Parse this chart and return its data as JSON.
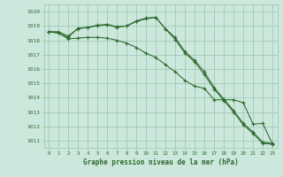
{
  "xlabel": "Graphe pression niveau de la mer (hPa)",
  "x": [
    0,
    1,
    2,
    3,
    4,
    5,
    6,
    7,
    8,
    9,
    10,
    11,
    12,
    13,
    14,
    15,
    16,
    17,
    18,
    19,
    20,
    21,
    22,
    23
  ],
  "line1": [
    1018.6,
    1018.6,
    1018.3,
    1018.8,
    1018.9,
    1019.0,
    1019.1,
    1018.9,
    1019.0,
    1019.35,
    1019.55,
    1019.6,
    1018.8,
    1018.2,
    1017.2,
    1016.6,
    1015.8,
    1014.7,
    1013.9,
    1013.1,
    1012.2,
    1011.6,
    1010.9,
    1010.8
  ],
  "line2": [
    1018.6,
    1018.5,
    1018.2,
    1018.85,
    1018.9,
    1019.05,
    1019.1,
    1018.95,
    1019.0,
    1019.3,
    1019.5,
    1019.6,
    1018.8,
    1018.05,
    1017.1,
    1016.5,
    1015.6,
    1014.6,
    1013.8,
    1013.0,
    1012.1,
    1011.5,
    1010.8,
    1010.75
  ],
  "line3": [
    1018.6,
    1018.5,
    1018.1,
    1018.15,
    1018.2,
    1018.2,
    1018.15,
    1018.0,
    1017.8,
    1017.5,
    1017.1,
    1016.8,
    1016.3,
    1015.8,
    1015.2,
    1014.8,
    1014.65,
    1013.85,
    1013.85,
    1013.85,
    1013.65,
    1012.15,
    1012.2,
    1010.75
  ],
  "line_color": "#2d6a2d",
  "bg_color": "#cce8dc",
  "grid_color": "#99c4b0",
  "ylim_min": 1010.5,
  "ylim_max": 1020.5,
  "yticks": [
    1011,
    1012,
    1013,
    1014,
    1015,
    1016,
    1017,
    1018,
    1019,
    1020
  ]
}
